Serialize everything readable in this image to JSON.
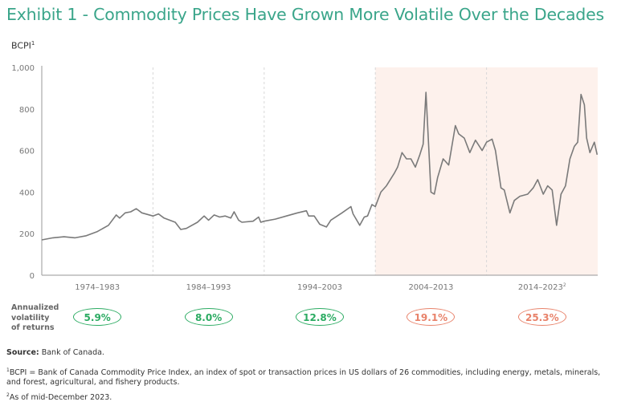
{
  "title": "Exhibit 1 - Commodity Prices Have Grown More Volatile Over the Decades",
  "chart_data": {
    "type": "line",
    "title": "Exhibit 1 - Commodity Prices Have Grown More Volatile Over the Decades",
    "ylabel": "BCPI",
    "ylabel_sup": "1",
    "ylim": [
      0,
      1000
    ],
    "yticks": [
      "0",
      "200",
      "400",
      "600",
      "800",
      "1,000"
    ],
    "ytick_values": [
      0,
      200,
      400,
      600,
      800,
      1000
    ],
    "xlim": [
      1974,
      2024
    ],
    "grid": false,
    "line_color": "#7a7a7a",
    "highlight_color": "#fdf1ec",
    "highlight_range": [
      2004,
      2024
    ],
    "periods": [
      {
        "label": "1974–1983",
        "start": 1974,
        "end": 1984,
        "volatility": "5.9%",
        "tone": "low"
      },
      {
        "label": "1984–1993",
        "start": 1984,
        "end": 1994,
        "volatility": "8.0%",
        "tone": "low"
      },
      {
        "label": "1994–2003",
        "start": 1994,
        "end": 2004,
        "volatility": "12.8%",
        "tone": "low"
      },
      {
        "label": "2004–2013",
        "start": 2004,
        "end": 2014,
        "volatility": "19.1%",
        "tone": "high"
      },
      {
        "label": "2014–2023",
        "sup": "2",
        "start": 2014,
        "end": 2024,
        "volatility": "25.3%",
        "tone": "high"
      }
    ],
    "x": [
      1974,
      1975,
      1976,
      1977,
      1978,
      1979,
      1980,
      1980.7,
      1981,
      1981.5,
      1982,
      1982.5,
      1983,
      1984,
      1984.5,
      1985,
      1986,
      1986.5,
      1987,
      1988,
      1988.6,
      1989,
      1989.5,
      1990,
      1990.5,
      1991,
      1991.3,
      1991.7,
      1992,
      1993,
      1993.5,
      1993.7,
      1994,
      1995,
      1996,
      1997,
      1997.8,
      1998,
      1998.5,
      1999,
      1999.6,
      2000,
      2001,
      2001.8,
      2002,
      2002.6,
      2003,
      2003.3,
      2003.7,
      2004,
      2004.5,
      2005,
      2005.7,
      2006,
      2006.4,
      2006.8,
      2007.2,
      2007.6,
      2008,
      2008.3,
      2008.55,
      2008.8,
      2009,
      2009.3,
      2009.6,
      2010.1,
      2010.6,
      2011.2,
      2011.5,
      2012,
      2012.5,
      2013,
      2013.6,
      2014,
      2014.5,
      2014.8,
      2015.3,
      2015.6,
      2016.1,
      2016.5,
      2017,
      2017.7,
      2018.2,
      2018.6,
      2019.1,
      2019.5,
      2019.9,
      2020.3,
      2020.7,
      2021.1,
      2021.5,
      2021.9,
      2022.2,
      2022.5,
      2022.8,
      2023,
      2023.3,
      2023.7,
      2023.95
    ],
    "y": [
      170,
      180,
      185,
      180,
      190,
      210,
      240,
      290,
      275,
      300,
      305,
      320,
      300,
      285,
      295,
      275,
      255,
      220,
      225,
      255,
      285,
      265,
      290,
      280,
      285,
      275,
      305,
      265,
      255,
      260,
      280,
      255,
      260,
      270,
      285,
      300,
      310,
      285,
      285,
      245,
      232,
      265,
      300,
      330,
      295,
      240,
      280,
      285,
      340,
      330,
      400,
      430,
      490,
      520,
      590,
      560,
      560,
      520,
      580,
      630,
      880,
      620,
      400,
      390,
      470,
      560,
      530,
      720,
      680,
      660,
      590,
      650,
      600,
      640,
      655,
      600,
      420,
      410,
      300,
      360,
      380,
      390,
      420,
      460,
      390,
      430,
      410,
      240,
      390,
      430,
      560,
      620,
      640,
      870,
      820,
      660,
      590,
      640,
      580
    ]
  },
  "volatility_label": [
    "Annualized",
    "volatility",
    "of returns"
  ],
  "colors": {
    "title": "#3aa58a",
    "low": "#2bab62",
    "high": "#e8826a"
  },
  "footnotes": {
    "source_label": "Source:",
    "source_text": " Bank of Canada.",
    "note1_sup": "1",
    "note1": "BCPI = Bank of Canada Commodity Price Index, an index of spot or transaction prices in US dollars of 26 commodities, including energy, metals, minerals, and forest, agricultural, and fishery products.",
    "note2_sup": "2",
    "note2": "As of mid-December 2023."
  }
}
